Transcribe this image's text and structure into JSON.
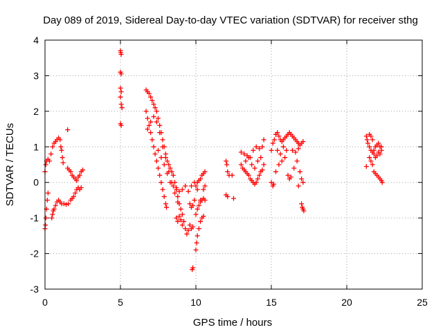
{
  "chart_data": {
    "type": "scatter",
    "title": "Day 089 of 2019, Sidereal Day-to-day VTEC variation (SDTVAR) for receiver sthg",
    "xlabel": "GPS time / hours",
    "ylabel": "SDTVAR / TECUs",
    "xlim": [
      0,
      25
    ],
    "ylim": [
      -3,
      4
    ],
    "xticks": [
      0,
      5,
      10,
      15,
      20,
      25
    ],
    "yticks": [
      -3,
      -2,
      -1,
      0,
      1,
      2,
      3,
      4
    ],
    "xtick_labels": [
      "0",
      "5",
      "10",
      "15",
      "20",
      "25"
    ],
    "ytick_labels": [
      "-3",
      "-2",
      "-1",
      "0",
      "1",
      "2",
      "3",
      "4"
    ],
    "grid": true,
    "marker": "+",
    "color": "#ff0000",
    "series": [
      {
        "name": "SDTVAR",
        "points": [
          [
            0.0,
            -1.3
          ],
          [
            0.03,
            -1.2
          ],
          [
            0.06,
            -1.0
          ],
          [
            0.1,
            -0.75
          ],
          [
            0.15,
            -0.5
          ],
          [
            0.2,
            -0.3
          ],
          [
            0.0,
            0.3
          ],
          [
            0.05,
            0.5
          ],
          [
            0.1,
            0.6
          ],
          [
            0.2,
            0.65
          ],
          [
            0.3,
            0.6
          ],
          [
            0.4,
            0.8
          ],
          [
            0.5,
            1.0
          ],
          [
            0.6,
            1.1
          ],
          [
            0.7,
            1.15
          ],
          [
            0.8,
            1.2
          ],
          [
            0.9,
            1.25
          ],
          [
            1.0,
            1.2
          ],
          [
            1.05,
            1.0
          ],
          [
            1.1,
            0.9
          ],
          [
            1.15,
            0.7
          ],
          [
            1.2,
            0.55
          ],
          [
            0.45,
            -1.0
          ],
          [
            0.5,
            -0.9
          ],
          [
            0.55,
            -0.8
          ],
          [
            0.6,
            -0.75
          ],
          [
            0.7,
            -0.65
          ],
          [
            0.8,
            -0.55
          ],
          [
            0.9,
            -0.5
          ],
          [
            1.0,
            -0.55
          ],
          [
            1.1,
            -0.6
          ],
          [
            1.25,
            -0.6
          ],
          [
            1.4,
            -0.62
          ],
          [
            1.55,
            -0.6
          ],
          [
            1.7,
            -0.5
          ],
          [
            1.8,
            -0.45
          ],
          [
            1.9,
            -0.4
          ],
          [
            2.0,
            -0.3
          ],
          [
            2.1,
            -0.2
          ],
          [
            2.2,
            -0.15
          ],
          [
            2.3,
            -0.2
          ],
          [
            2.4,
            -0.15
          ],
          [
            1.5,
            0.4
          ],
          [
            1.6,
            0.35
          ],
          [
            1.7,
            0.3
          ],
          [
            1.8,
            0.2
          ],
          [
            1.9,
            0.15
          ],
          [
            2.0,
            0.1
          ],
          [
            2.1,
            0.05
          ],
          [
            2.2,
            0.15
          ],
          [
            2.3,
            0.2
          ],
          [
            2.4,
            0.3
          ],
          [
            2.5,
            0.35
          ],
          [
            1.5,
            1.48
          ],
          [
            5.0,
            3.7
          ],
          [
            5.02,
            3.65
          ],
          [
            5.05,
            3.6
          ],
          [
            5.0,
            3.1
          ],
          [
            5.05,
            3.05
          ],
          [
            5.0,
            2.65
          ],
          [
            5.05,
            2.55
          ],
          [
            5.0,
            2.4
          ],
          [
            5.05,
            2.2
          ],
          [
            5.1,
            2.1
          ],
          [
            5.0,
            1.65
          ],
          [
            5.05,
            1.6
          ],
          [
            6.7,
            2.6
          ],
          [
            6.8,
            2.55
          ],
          [
            6.9,
            2.5
          ],
          [
            7.0,
            2.4
          ],
          [
            7.1,
            2.3
          ],
          [
            7.2,
            2.2
          ],
          [
            7.3,
            2.1
          ],
          [
            7.4,
            2.0
          ],
          [
            7.5,
            1.8
          ],
          [
            7.6,
            1.6
          ],
          [
            7.7,
            1.4
          ],
          [
            7.8,
            1.2
          ],
          [
            7.9,
            1.0
          ],
          [
            8.0,
            0.8
          ],
          [
            8.1,
            0.6
          ],
          [
            8.2,
            0.5
          ],
          [
            8.3,
            0.4
          ],
          [
            8.4,
            0.3
          ],
          [
            8.5,
            0.2
          ],
          [
            8.6,
            0.0
          ],
          [
            8.7,
            -0.2
          ],
          [
            8.8,
            -0.4
          ],
          [
            8.9,
            -0.6
          ],
          [
            9.0,
            -0.75
          ],
          [
            9.1,
            -0.9
          ],
          [
            9.2,
            -1.1
          ],
          [
            9.3,
            -1.3
          ],
          [
            9.4,
            -1.45
          ],
          [
            9.5,
            -1.35
          ],
          [
            9.6,
            -1.2
          ],
          [
            9.7,
            -1.3
          ],
          [
            9.8,
            -1.25
          ],
          [
            6.7,
            2.0
          ],
          [
            6.8,
            1.8
          ],
          [
            6.9,
            1.6
          ],
          [
            7.0,
            1.4
          ],
          [
            7.1,
            1.2
          ],
          [
            7.2,
            1.0
          ],
          [
            7.3,
            0.8
          ],
          [
            7.4,
            0.6
          ],
          [
            7.5,
            0.4
          ],
          [
            7.6,
            0.2
          ],
          [
            7.7,
            0.0
          ],
          [
            7.8,
            -0.2
          ],
          [
            7.9,
            -0.4
          ],
          [
            8.0,
            -0.6
          ],
          [
            8.05,
            -0.7
          ],
          [
            6.8,
            1.5
          ],
          [
            7.0,
            1.7
          ],
          [
            7.2,
            1.85
          ],
          [
            7.4,
            1.7
          ],
          [
            7.6,
            1.4
          ],
          [
            7.8,
            1.0
          ],
          [
            8.0,
            0.7
          ],
          [
            8.2,
            0.3
          ],
          [
            8.4,
            0.0
          ],
          [
            8.6,
            -0.3
          ],
          [
            8.8,
            -0.55
          ],
          [
            7.5,
            0.9
          ],
          [
            7.7,
            0.7
          ],
          [
            7.9,
            0.5
          ],
          [
            8.1,
            0.25
          ],
          [
            8.3,
            0.0
          ],
          [
            8.5,
            -0.1
          ],
          [
            8.7,
            -0.15
          ],
          [
            8.9,
            -0.25
          ],
          [
            9.1,
            -0.2
          ],
          [
            9.3,
            -0.1
          ],
          [
            9.5,
            -0.25
          ],
          [
            9.7,
            -0.1
          ],
          [
            9.9,
            0.0
          ],
          [
            10.1,
            -0.2
          ],
          [
            10.3,
            -0.5
          ],
          [
            10.5,
            -0.2
          ],
          [
            10.6,
            -0.1
          ],
          [
            8.7,
            -1.0
          ],
          [
            8.8,
            -1.1
          ],
          [
            8.9,
            -0.95
          ],
          [
            9.0,
            -1.05
          ],
          [
            9.1,
            -1.2
          ],
          [
            9.6,
            -0.6
          ],
          [
            9.7,
            -0.7
          ],
          [
            9.8,
            -0.65
          ],
          [
            9.9,
            -0.5
          ],
          [
            9.75,
            -2.45
          ],
          [
            9.8,
            -2.4
          ],
          [
            10.0,
            -1.9
          ],
          [
            10.05,
            -1.7
          ],
          [
            10.1,
            -1.5
          ],
          [
            10.2,
            -1.3
          ],
          [
            10.3,
            -1.1
          ],
          [
            10.4,
            -1.0
          ],
          [
            10.5,
            -0.95
          ],
          [
            10.0,
            -0.9
          ],
          [
            10.1,
            -0.75
          ],
          [
            10.2,
            -0.65
          ],
          [
            10.3,
            -0.55
          ],
          [
            10.4,
            -0.5
          ],
          [
            10.5,
            -0.45
          ],
          [
            10.6,
            -0.5
          ],
          [
            10.0,
            -0.1
          ],
          [
            10.1,
            0.0
          ],
          [
            10.2,
            0.05
          ],
          [
            10.3,
            0.1
          ],
          [
            10.4,
            0.2
          ],
          [
            10.5,
            0.25
          ],
          [
            10.6,
            0.3
          ],
          [
            12.0,
            0.6
          ],
          [
            12.05,
            0.5
          ],
          [
            12.1,
            0.3
          ],
          [
            12.2,
            0.2
          ],
          [
            12.0,
            -0.35
          ],
          [
            12.1,
            -0.4
          ],
          [
            12.5,
            -0.45
          ],
          [
            12.4,
            0.2
          ],
          [
            13.0,
            0.85
          ],
          [
            13.2,
            0.8
          ],
          [
            13.4,
            0.75
          ],
          [
            13.6,
            0.7
          ],
          [
            13.8,
            0.9
          ],
          [
            14.0,
            1.0
          ],
          [
            14.2,
            0.95
          ],
          [
            14.4,
            1.0
          ],
          [
            14.5,
            1.2
          ],
          [
            13.0,
            0.5
          ],
          [
            13.1,
            0.4
          ],
          [
            13.2,
            0.35
          ],
          [
            13.3,
            0.3
          ],
          [
            13.4,
            0.25
          ],
          [
            13.5,
            0.2
          ],
          [
            13.6,
            0.1
          ],
          [
            13.7,
            0.05
          ],
          [
            13.8,
            0.0
          ],
          [
            13.9,
            -0.05
          ],
          [
            14.0,
            0.0
          ],
          [
            14.1,
            0.1
          ],
          [
            14.2,
            0.2
          ],
          [
            14.3,
            0.3
          ],
          [
            14.4,
            0.35
          ],
          [
            14.5,
            0.5
          ],
          [
            13.5,
            0.7
          ],
          [
            13.7,
            0.5
          ],
          [
            13.9,
            0.4
          ],
          [
            14.1,
            0.6
          ],
          [
            14.3,
            0.7
          ],
          [
            13.3,
            0.6
          ],
          [
            15.0,
            0.9
          ],
          [
            15.1,
            1.1
          ],
          [
            15.2,
            1.2
          ],
          [
            15.3,
            1.35
          ],
          [
            15.4,
            1.4
          ],
          [
            15.5,
            1.3
          ],
          [
            15.6,
            1.2
          ],
          [
            15.7,
            1.15
          ],
          [
            15.8,
            1.2
          ],
          [
            15.9,
            1.25
          ],
          [
            16.0,
            1.3
          ],
          [
            16.1,
            1.35
          ],
          [
            16.2,
            1.4
          ],
          [
            16.3,
            1.35
          ],
          [
            16.4,
            1.3
          ],
          [
            16.5,
            1.25
          ],
          [
            16.6,
            1.2
          ],
          [
            16.7,
            1.15
          ],
          [
            16.8,
            1.1
          ],
          [
            16.9,
            1.05
          ],
          [
            17.0,
            1.1
          ],
          [
            17.1,
            1.15
          ],
          [
            15.0,
            0.0
          ],
          [
            15.1,
            -0.1
          ],
          [
            15.15,
            -0.05
          ],
          [
            15.3,
            0.3
          ],
          [
            15.5,
            0.5
          ],
          [
            15.7,
            0.6
          ],
          [
            15.9,
            0.7
          ],
          [
            16.1,
            0.2
          ],
          [
            16.2,
            0.1
          ],
          [
            16.3,
            0.15
          ],
          [
            16.5,
            0.4
          ],
          [
            16.7,
            0.6
          ],
          [
            16.9,
            0.3
          ],
          [
            17.0,
            0.1
          ],
          [
            17.1,
            0.0
          ],
          [
            16.8,
            -0.1
          ],
          [
            15.4,
            0.9
          ],
          [
            15.6,
            0.8
          ],
          [
            15.8,
            1.0
          ],
          [
            16.0,
            0.9
          ],
          [
            16.4,
            0.9
          ],
          [
            16.6,
            0.85
          ],
          [
            16.8,
            0.95
          ],
          [
            17.0,
            -0.6
          ],
          [
            17.05,
            -0.7
          ],
          [
            17.1,
            -0.75
          ],
          [
            17.15,
            -0.8
          ],
          [
            21.3,
            0.45
          ],
          [
            21.3,
            1.3
          ],
          [
            21.35,
            1.2
          ],
          [
            21.4,
            1.1
          ],
          [
            21.5,
            1.0
          ],
          [
            21.6,
            0.9
          ],
          [
            21.7,
            0.85
          ],
          [
            21.8,
            0.9
          ],
          [
            21.9,
            1.0
          ],
          [
            22.0,
            1.05
          ],
          [
            22.1,
            1.1
          ],
          [
            22.2,
            1.0
          ],
          [
            22.3,
            0.9
          ],
          [
            21.5,
            0.7
          ],
          [
            21.6,
            0.6
          ],
          [
            21.7,
            0.5
          ],
          [
            21.8,
            0.3
          ],
          [
            21.9,
            0.25
          ],
          [
            22.0,
            0.2
          ],
          [
            22.1,
            0.15
          ],
          [
            22.2,
            0.1
          ],
          [
            22.3,
            0.05
          ],
          [
            22.35,
            0.0
          ],
          [
            21.5,
            1.35
          ],
          [
            21.6,
            1.3
          ],
          [
            21.7,
            1.2
          ],
          [
            21.8,
            0.8
          ],
          [
            21.9,
            0.7
          ],
          [
            22.0,
            0.75
          ],
          [
            22.1,
            0.85
          ],
          [
            22.2,
            0.8
          ],
          [
            22.3,
            1.0
          ]
        ]
      }
    ]
  }
}
